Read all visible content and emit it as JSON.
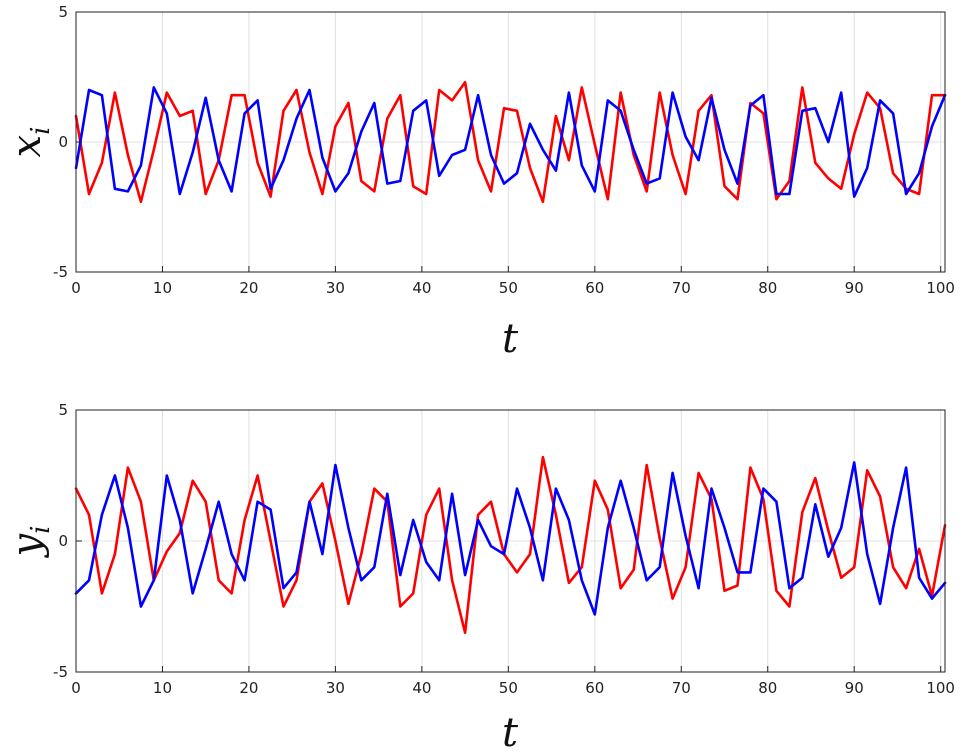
{
  "chart_data": [
    {
      "type": "line",
      "xlabel": "t",
      "ylabel": "x",
      "ylabel_sub": "i",
      "xlim": [
        0,
        100.5
      ],
      "ylim": [
        -5,
        5
      ],
      "xticks": [
        0,
        10,
        20,
        30,
        40,
        50,
        60,
        70,
        80,
        90,
        100
      ],
      "yticks": [
        -5,
        0,
        5
      ],
      "grid": true,
      "series": [
        {
          "color": "#ff0000",
          "x": [
            0,
            1.5,
            3,
            4.5,
            6,
            7.5,
            9,
            10.5,
            12,
            13.5,
            15,
            16.5,
            18,
            19.5,
            21,
            22.5,
            24,
            25.5,
            27,
            28.5,
            30,
            31.5,
            33,
            34.5,
            36,
            37.5,
            39,
            40.5,
            42,
            43.5,
            45,
            46.5,
            48,
            49.5,
            51,
            52.5,
            54,
            55.5,
            57,
            58.5,
            60,
            61.5,
            63,
            64.5,
            66,
            67.5,
            69,
            70.5,
            72,
            73.5,
            75,
            76.5,
            78,
            79.5,
            81,
            82.5,
            84,
            85.5,
            87,
            88.5,
            90,
            91.5,
            93,
            94.5,
            96,
            97.5,
            99,
            100.5
          ],
          "y": [
            1,
            -2,
            -0.8,
            1.9,
            -0.5,
            -2.3,
            -0.3,
            1.9,
            1,
            1.2,
            -2,
            -0.7,
            1.8,
            1.8,
            -0.8,
            -2.1,
            1.2,
            2,
            -0.4,
            -2,
            0.6,
            1.5,
            -1.5,
            -1.9,
            0.9,
            1.8,
            -1.7,
            -2,
            2,
            1.6,
            2.3,
            -0.7,
            -1.9,
            1.3,
            1.2,
            -1,
            -2.3,
            1,
            -0.7,
            2.1,
            -0.1,
            -2.2,
            1.9,
            -0.5,
            -1.9,
            1.9,
            -0.5,
            -2,
            1.2,
            1.8,
            -1.7,
            -2.2,
            1.5,
            1.1,
            -2.2,
            -1.5,
            2.1,
            -0.8,
            -1.4,
            -1.8,
            0.3,
            1.9,
            1.3,
            -1.2,
            -1.8,
            -2,
            1.8,
            1.8
          ]
        },
        {
          "color": "#0000ff",
          "x": [
            0,
            1.5,
            3,
            4.5,
            6,
            7.5,
            9,
            10.5,
            12,
            13.5,
            15,
            16.5,
            18,
            19.5,
            21,
            22.5,
            24,
            25.5,
            27,
            28.5,
            30,
            31.5,
            33,
            34.5,
            36,
            37.5,
            39,
            40.5,
            42,
            43.5,
            45,
            46.5,
            48,
            49.5,
            51,
            52.5,
            54,
            55.5,
            57,
            58.5,
            60,
            61.5,
            63,
            64.5,
            66,
            67.5,
            69,
            70.5,
            72,
            73.5,
            75,
            76.5,
            78,
            79.5,
            81,
            82.5,
            84,
            85.5,
            87,
            88.5,
            90,
            91.5,
            93,
            94.5,
            96,
            97.5,
            99,
            100.5
          ],
          "y": [
            -1,
            2,
            1.8,
            -1.8,
            -1.9,
            -0.9,
            2.1,
            1.1,
            -2,
            -0.4,
            1.7,
            -0.7,
            -1.9,
            1.1,
            1.6,
            -1.8,
            -0.7,
            0.9,
            2,
            -0.6,
            -1.9,
            -1.2,
            0.4,
            1.5,
            -1.6,
            -1.5,
            1.2,
            1.6,
            -1.3,
            -0.5,
            -0.3,
            1.8,
            -0.5,
            -1.6,
            -1.2,
            0.7,
            -0.3,
            -1.1,
            1.9,
            -0.9,
            -1.9,
            1.6,
            1.2,
            -0.3,
            -1.6,
            -1.4,
            1.9,
            0.2,
            -0.7,
            1.7,
            -0.3,
            -1.6,
            1.4,
            1.8,
            -2,
            -2,
            1.2,
            1.3,
            0,
            1.9,
            -2.1,
            -1,
            1.6,
            1.1,
            -2,
            -1.2,
            0.6,
            1.8
          ]
        }
      ]
    },
    {
      "type": "line",
      "xlabel": "t",
      "ylabel": "y",
      "ylabel_sub": "i",
      "xlim": [
        0,
        100.5
      ],
      "ylim": [
        -5,
        5
      ],
      "xticks": [
        0,
        10,
        20,
        30,
        40,
        50,
        60,
        70,
        80,
        90,
        100
      ],
      "yticks": [
        -5,
        0,
        5
      ],
      "grid": true,
      "series": [
        {
          "color": "#ff0000",
          "x": [
            0,
            1.5,
            3,
            4.5,
            6,
            7.5,
            9,
            10.5,
            12,
            13.5,
            15,
            16.5,
            18,
            19.5,
            21,
            22.5,
            24,
            25.5,
            27,
            28.5,
            30,
            31.5,
            33,
            34.5,
            36,
            37.5,
            39,
            40.5,
            42,
            43.5,
            45,
            46.5,
            48,
            49.5,
            51,
            52.5,
            54,
            55.5,
            57,
            58.5,
            60,
            61.5,
            63,
            64.5,
            66,
            67.5,
            69,
            70.5,
            72,
            73.5,
            75,
            76.5,
            78,
            79.5,
            81,
            82.5,
            84,
            85.5,
            87,
            88.5,
            90,
            91.5,
            93,
            94.5,
            96,
            97.5,
            99,
            100.5
          ],
          "y": [
            2,
            1,
            -2,
            -0.5,
            2.8,
            1.5,
            -1.5,
            -0.4,
            0.3,
            2.3,
            1.5,
            -1.5,
            -2,
            0.8,
            2.5,
            0,
            -2.5,
            -1.5,
            1.5,
            2.2,
            0,
            -2.4,
            -0.5,
            2,
            1.5,
            -2.5,
            -2,
            1,
            2,
            -1.5,
            -3.5,
            1,
            1.5,
            -0.5,
            -1.2,
            -0.5,
            3.2,
            1,
            -1.6,
            -1,
            2.3,
            1.2,
            -1.8,
            -1.1,
            2.9,
            0.1,
            -2.2,
            -1,
            2.6,
            1.6,
            -1.9,
            -1.7,
            2.8,
            1.6,
            -1.9,
            -2.5,
            1.1,
            2.4,
            0.4,
            -1.4,
            -1,
            2.7,
            1.7,
            -1,
            -1.8,
            -0.3,
            -2.1,
            0.6
          ]
        },
        {
          "color": "#0000ff",
          "x": [
            0,
            1.5,
            3,
            4.5,
            6,
            7.5,
            9,
            10.5,
            12,
            13.5,
            15,
            16.5,
            18,
            19.5,
            21,
            22.5,
            24,
            25.5,
            27,
            28.5,
            30,
            31.5,
            33,
            34.5,
            36,
            37.5,
            39,
            40.5,
            42,
            43.5,
            45,
            46.5,
            48,
            49.5,
            51,
            52.5,
            54,
            55.5,
            57,
            58.5,
            60,
            61.5,
            63,
            64.5,
            66,
            67.5,
            69,
            70.5,
            72,
            73.5,
            75,
            76.5,
            78,
            79.5,
            81,
            82.5,
            84,
            85.5,
            87,
            88.5,
            90,
            91.5,
            93,
            94.5,
            96,
            97.5,
            99,
            100.5
          ],
          "y": [
            -2,
            -1.5,
            1,
            2.5,
            0.5,
            -2.5,
            -1.5,
            2.5,
            0.8,
            -2,
            -0.3,
            1.5,
            -0.5,
            -1.5,
            1.5,
            1.2,
            -1.8,
            -1.2,
            1.5,
            -0.5,
            2.9,
            0.5,
            -1.5,
            -1,
            1.8,
            -1.3,
            0.8,
            -0.8,
            -1.5,
            1.8,
            -1.3,
            0.8,
            -0.2,
            -0.5,
            2,
            0.5,
            -1.5,
            2,
            0.8,
            -1.5,
            -2.8,
            0.5,
            2.3,
            0.5,
            -1.5,
            -1,
            2.6,
            0.2,
            -1.8,
            2,
            0.5,
            -1.2,
            -1.2,
            2,
            1.5,
            -1.8,
            -1.4,
            1.4,
            -0.6,
            0.5,
            3,
            -0.5,
            -2.4,
            0.5,
            2.8,
            -1.4,
            -2.2,
            -1.6
          ]
        }
      ]
    }
  ]
}
